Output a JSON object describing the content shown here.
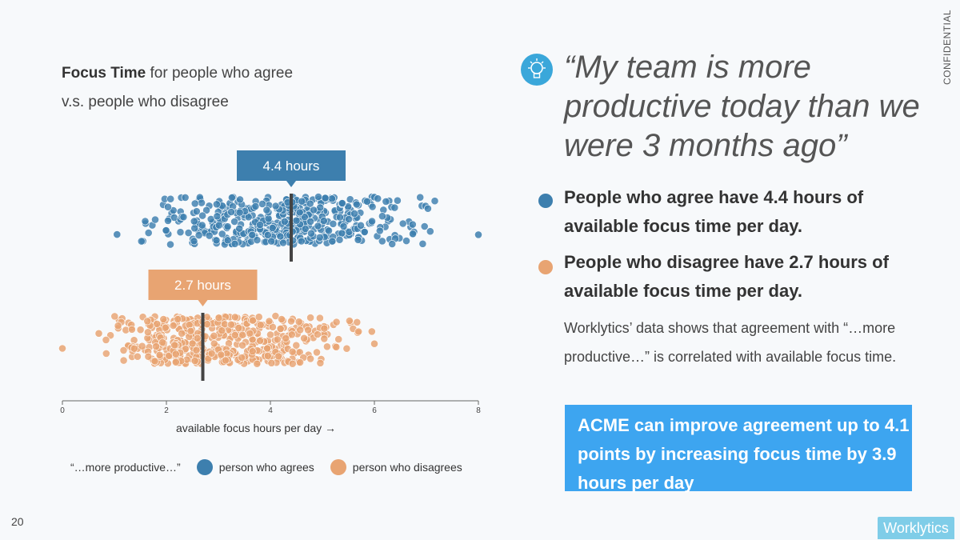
{
  "page": {
    "confidential": "CONFIDENTIAL",
    "page_number": "20",
    "logo_text": "Worklytics"
  },
  "chart_title": {
    "bold": "Focus Time",
    "rest_line1": " for people who agree",
    "line2": "v.s. people who disagree"
  },
  "quote": "“My team is more productive today than we were 3 months ago”",
  "bullets": [
    {
      "text": "People who agree have 4.4 hours of available focus time per day.",
      "color": "#3d7fae"
    },
    {
      "text": "People who disagree have 2.7 hours of available focus time per day.",
      "color": "#e8a472"
    }
  ],
  "body_text": "Worklytics’ data shows that agreement with “…more productive…” is correlated with available focus time.",
  "callout": "ACME can improve agreement up to 4.1 points by increasing focus time by 3.9 hours per day",
  "colors": {
    "agree": "#3d7fae",
    "disagree": "#e8a472",
    "accent": "#3da5f0",
    "icon": "#3aa7da"
  },
  "icons": {
    "idea": "lightbulb-icon"
  },
  "chart_data": {
    "type": "scatter",
    "xlabel": "available focus hours per day →",
    "x_ticks": [
      0,
      2,
      4,
      6,
      8
    ],
    "xlim": [
      0,
      8
    ],
    "legend": {
      "title": "“…more productive…”",
      "agree_label": "person who agrees",
      "disagree_label": "person who disagrees"
    },
    "series": [
      {
        "key": "agree",
        "label": "4.4 hours",
        "marker": 4.4,
        "min": 1.05,
        "max": 8.0,
        "outliers": [
          1.05,
          8.0
        ],
        "n": 460
      },
      {
        "key": "disagree",
        "label": "2.7 hours",
        "marker": 2.7,
        "min": 0.0,
        "max": 6.0,
        "outliers": [
          0.0,
          0.7,
          5.95,
          6.0
        ],
        "n": 470
      }
    ]
  }
}
